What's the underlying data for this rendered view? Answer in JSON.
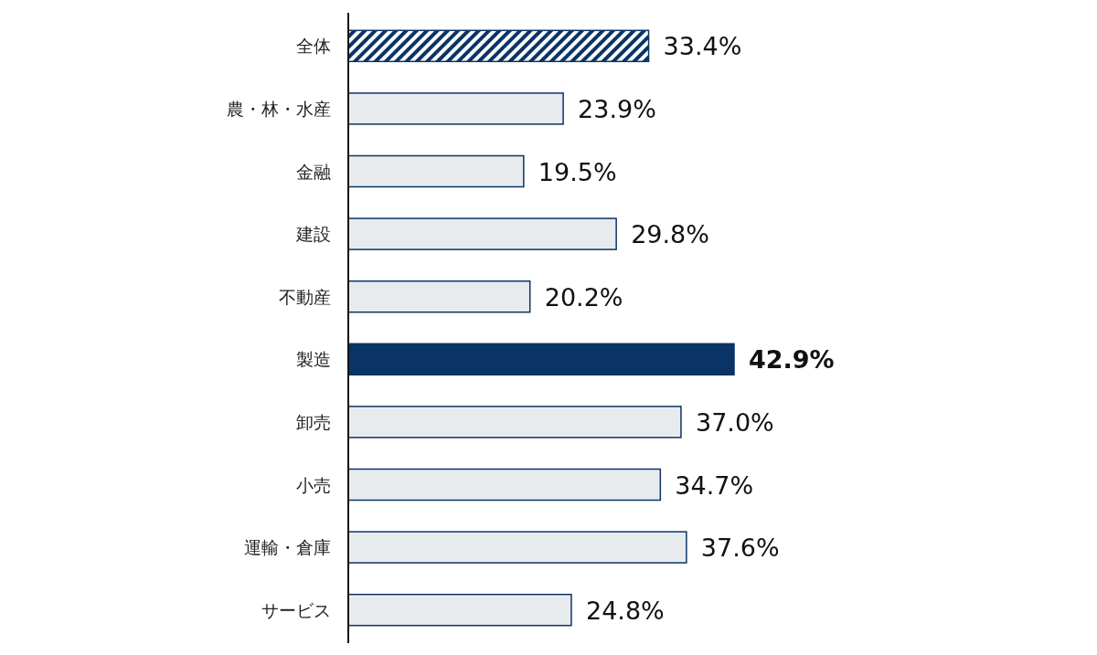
{
  "chart_data": {
    "type": "bar",
    "orientation": "horizontal",
    "categories": [
      "全体",
      "農・林・水産",
      "金融",
      "建設",
      "不動産",
      "製造",
      "卸売",
      "小売",
      "運輸・倉庫",
      "サービス"
    ],
    "values": [
      33.4,
      23.9,
      19.5,
      29.8,
      20.2,
      42.9,
      37.0,
      34.7,
      37.6,
      24.8
    ],
    "value_labels": [
      "33.4%",
      "23.9%",
      "19.5%",
      "29.8%",
      "20.2%",
      "42.9%",
      "37.0%",
      "34.7%",
      "37.6%",
      "24.8%"
    ],
    "colors": [
      "#0b3466",
      "#e8ebee",
      "#e8ebee",
      "#e8ebee",
      "#e8ebee",
      "#0b3466",
      "#e8ebee",
      "#e8ebee",
      "#e8ebee",
      "#e8ebee"
    ]
  }
}
